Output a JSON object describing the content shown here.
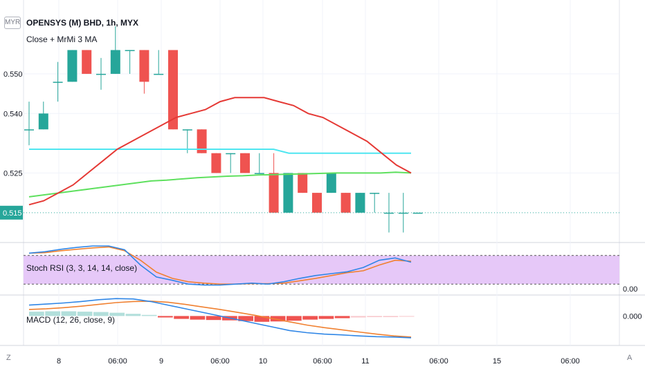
{
  "header": {
    "title": "OPENSYS (M) BHD, 1h, MYX",
    "subtitle": "Close + MrMi 3 MA",
    "currency_badge": "MYR"
  },
  "stoch_label": "Stoch RSI (3, 3, 14, 14, close)",
  "macd_label": "MACD (12, 26, close, 9)",
  "corner_left": "Z",
  "corner_right": "A",
  "colors": {
    "up": "#26a69a",
    "down": "#ef5350",
    "ma_red": "#e53935",
    "ma_cyan": "#4ee6f0",
    "ma_green": "#5ee05e",
    "stoch_bg": "#e6c8f8",
    "k": "#2f86e6",
    "d": "#f08030",
    "hist_pos": "#b2dfdb",
    "hist_neg_weak": "#f8c8cc"
  },
  "chart_data": [
    {
      "type": "candlestick",
      "x_labels": [
        "8",
        "06:00",
        "9",
        "06:00",
        "10",
        "06:00",
        "11",
        "06:00",
        "15",
        "06:00"
      ],
      "y_ticks": [
        "0.550",
        "0.540",
        "0.525"
      ],
      "last_price": "0.515",
      "candles": [
        {
          "o": 0.536,
          "h": 0.543,
          "l": 0.532,
          "c": 0.536
        },
        {
          "o": 0.536,
          "h": 0.543,
          "l": 0.536,
          "c": 0.54
        },
        {
          "o": 0.548,
          "h": 0.553,
          "l": 0.543,
          "c": 0.548
        },
        {
          "o": 0.548,
          "h": 0.556,
          "l": 0.548,
          "c": 0.556
        },
        {
          "o": 0.556,
          "h": 0.556,
          "l": 0.55,
          "c": 0.55
        },
        {
          "o": 0.55,
          "h": 0.554,
          "l": 0.546,
          "c": 0.55
        },
        {
          "o": 0.55,
          "h": 0.562,
          "l": 0.55,
          "c": 0.556
        },
        {
          "o": 0.556,
          "h": 0.556,
          "l": 0.55,
          "c": 0.556
        },
        {
          "o": 0.556,
          "h": 0.556,
          "l": 0.545,
          "c": 0.548
        },
        {
          "o": 0.55,
          "h": 0.556,
          "l": 0.55,
          "c": 0.55
        },
        {
          "o": 0.556,
          "h": 0.556,
          "l": 0.536,
          "c": 0.536
        },
        {
          "o": 0.536,
          "h": 0.536,
          "l": 0.53,
          "c": 0.536
        },
        {
          "o": 0.536,
          "h": 0.536,
          "l": 0.53,
          "c": 0.53
        },
        {
          "o": 0.53,
          "h": 0.53,
          "l": 0.525,
          "c": 0.525
        },
        {
          "o": 0.53,
          "h": 0.53,
          "l": 0.525,
          "c": 0.53
        },
        {
          "o": 0.53,
          "h": 0.53,
          "l": 0.525,
          "c": 0.525
        },
        {
          "o": 0.525,
          "h": 0.53,
          "l": 0.525,
          "c": 0.525
        },
        {
          "o": 0.525,
          "h": 0.53,
          "l": 0.515,
          "c": 0.515
        },
        {
          "o": 0.515,
          "h": 0.525,
          "l": 0.515,
          "c": 0.525
        },
        {
          "o": 0.525,
          "h": 0.525,
          "l": 0.52,
          "c": 0.52
        },
        {
          "o": 0.52,
          "h": 0.52,
          "l": 0.515,
          "c": 0.515
        },
        {
          "o": 0.52,
          "h": 0.525,
          "l": 0.52,
          "c": 0.525
        },
        {
          "o": 0.52,
          "h": 0.52,
          "l": 0.515,
          "c": 0.515
        },
        {
          "o": 0.515,
          "h": 0.52,
          "l": 0.515,
          "c": 0.52
        },
        {
          "o": 0.52,
          "h": 0.52,
          "l": 0.515,
          "c": 0.52
        },
        {
          "o": 0.515,
          "h": 0.52,
          "l": 0.51,
          "c": 0.515
        },
        {
          "o": 0.515,
          "h": 0.52,
          "l": 0.51,
          "c": 0.515
        },
        {
          "o": 0.515,
          "h": 0.515,
          "l": 0.515,
          "c": 0.515
        }
      ],
      "ma_red": [
        0.517,
        0.518,
        0.52,
        0.522,
        0.525,
        0.528,
        0.531,
        0.533,
        0.535,
        0.537,
        0.539,
        0.54,
        0.541,
        0.543,
        0.544,
        0.544,
        0.544,
        0.543,
        0.542,
        0.54,
        0.539,
        0.537,
        0.535,
        0.533,
        0.53,
        0.527,
        0.525
      ],
      "ma_cyan": [
        0.531,
        0.531,
        0.531,
        0.531,
        0.531,
        0.531,
        0.531,
        0.531,
        0.531,
        0.531,
        0.531,
        0.531,
        0.531,
        0.531,
        0.531,
        0.531,
        0.531,
        0.53,
        0.53,
        0.53,
        0.53,
        0.53,
        0.53,
        0.53,
        0.53,
        0.53
      ],
      "ma_green": [
        0.519,
        0.5195,
        0.52,
        0.5205,
        0.521,
        0.5215,
        0.522,
        0.5225,
        0.523,
        0.5232,
        0.5235,
        0.5238,
        0.524,
        0.5242,
        0.5243,
        0.5245,
        0.5246,
        0.5247,
        0.5248,
        0.5249,
        0.525,
        0.525,
        0.525,
        0.525,
        0.5252,
        0.525
      ]
    },
    {
      "type": "line",
      "name": "Stoch RSI (3, 3, 14, 14, close)",
      "upper": 80,
      "lower": 20,
      "k": [
        85,
        88,
        93,
        97,
        100,
        100,
        92,
        60,
        35,
        28,
        20,
        18,
        18,
        20,
        22,
        20,
        25,
        32,
        38,
        42,
        46,
        55,
        70,
        75,
        66
      ],
      "d": [
        85,
        86,
        90,
        93,
        96,
        98,
        90,
        70,
        45,
        32,
        25,
        22,
        20,
        20,
        21,
        21,
        22,
        27,
        32,
        38,
        44,
        48,
        60,
        70,
        68
      ]
    },
    {
      "type": "bar",
      "name": "MACD (12, 26, close, 9)",
      "hist": [
        0.0012,
        0.0013,
        0.0013,
        0.0012,
        0.0011,
        0.0009,
        0.0006,
        0.0003,
        -0.0004,
        -0.0008,
        -0.001,
        -0.0011,
        -0.0012,
        -0.0014,
        -0.0016,
        -0.0015,
        -0.0013,
        -0.001,
        -0.0008,
        -0.0006,
        -0.0004,
        -0.0003,
        -0.0003,
        -0.0002
      ],
      "macd": [
        0.003,
        0.0033,
        0.0036,
        0.004,
        0.0045,
        0.0048,
        0.0047,
        0.004,
        0.003,
        0.002,
        0.001,
        0.0,
        -0.001,
        -0.002,
        -0.003,
        -0.004,
        -0.0046,
        -0.005,
        -0.0052,
        -0.0055,
        -0.0057,
        -0.0058,
        -0.006
      ],
      "signal": [
        0.0018,
        0.002,
        0.0023,
        0.0027,
        0.0032,
        0.0037,
        0.004,
        0.0041,
        0.0038,
        0.0032,
        0.0025,
        0.0018,
        0.001,
        0.0002,
        -0.0007,
        -0.0016,
        -0.0025,
        -0.0032,
        -0.0038,
        -0.0044,
        -0.005,
        -0.0055,
        -0.0058
      ],
      "y_tick": "0.000",
      "stoch_tick": "0.00"
    }
  ]
}
